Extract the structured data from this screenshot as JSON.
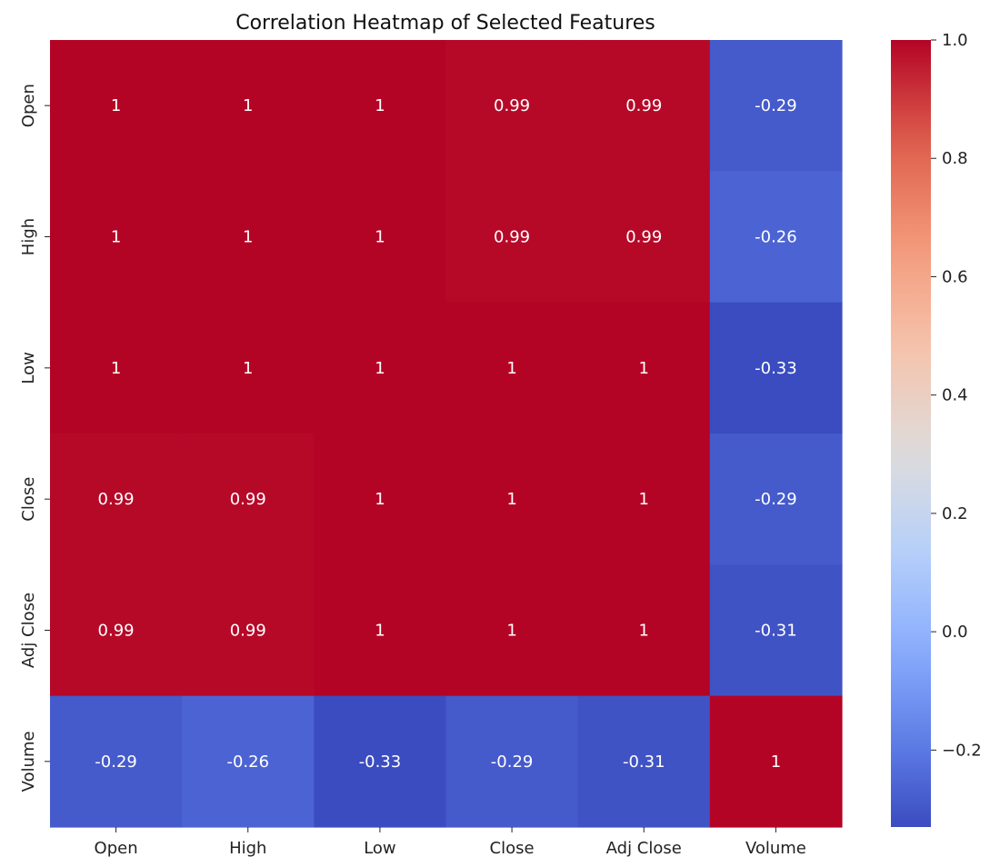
{
  "chart_data": {
    "type": "heatmap",
    "title": "Correlation Heatmap of Selected Features",
    "rows": [
      "Open",
      "High",
      "Low",
      "Close",
      "Adj Close",
      "Volume"
    ],
    "columns": [
      "Open",
      "High",
      "Low",
      "Close",
      "Adj Close",
      "Volume"
    ],
    "values": [
      [
        1.0,
        1.0,
        1.0,
        0.99,
        0.99,
        -0.29
      ],
      [
        1.0,
        1.0,
        1.0,
        0.99,
        0.99,
        -0.26
      ],
      [
        1.0,
        1.0,
        1.0,
        1.0,
        1.0,
        -0.33
      ],
      [
        0.99,
        0.99,
        1.0,
        1.0,
        1.0,
        -0.29
      ],
      [
        0.99,
        0.99,
        1.0,
        1.0,
        1.0,
        -0.31
      ],
      [
        -0.29,
        -0.26,
        -0.33,
        -0.29,
        -0.31,
        1.0
      ]
    ],
    "annotations": [
      [
        "1",
        "1",
        "1",
        "0.99",
        "0.99",
        "-0.29"
      ],
      [
        "1",
        "1",
        "1",
        "0.99",
        "0.99",
        "-0.26"
      ],
      [
        "1",
        "1",
        "1",
        "1",
        "1",
        "-0.33"
      ],
      [
        "0.99",
        "0.99",
        "1",
        "1",
        "1",
        "-0.29"
      ],
      [
        "0.99",
        "0.99",
        "1",
        "1",
        "1",
        "-0.31"
      ],
      [
        "-0.29",
        "-0.26",
        "-0.33",
        "-0.29",
        "-0.31",
        "1"
      ]
    ],
    "colormap": "coolwarm",
    "vmin": -0.33,
    "vmax": 1.0,
    "colorbar": {
      "ticks": [
        1.0,
        0.8,
        0.6,
        0.4,
        0.2,
        0.0,
        -0.2
      ],
      "tick_labels": [
        "1.0",
        "0.8",
        "0.6",
        "0.4",
        "0.2",
        "0.0",
        "−0.2"
      ]
    },
    "xlabel": "",
    "ylabel": ""
  }
}
